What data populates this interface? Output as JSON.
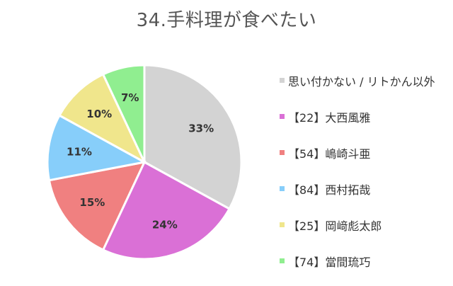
{
  "chart_data": {
    "type": "pie",
    "title": "34.手料理が食べたい",
    "slices": [
      {
        "label": "思い付かない / リトかん以外",
        "value": 33,
        "display": "33%",
        "color": "#d3d3d3"
      },
      {
        "label": "【22】大西風雅",
        "value": 24,
        "display": "24%",
        "color": "#da70d6"
      },
      {
        "label": "【54】嶋崎斗亜",
        "value": 15,
        "display": "15%",
        "color": "#f08080"
      },
      {
        "label": "【84】西村拓哉",
        "value": 11,
        "display": "11%",
        "color": "#87cefa"
      },
      {
        "label": "【25】岡﨑彪太郎",
        "value": 10,
        "display": "10%",
        "color": "#f0e68c"
      },
      {
        "label": "【74】當間琉巧",
        "value": 7,
        "display": "7%",
        "color": "#90ee90"
      }
    ],
    "legend_position": "right"
  }
}
